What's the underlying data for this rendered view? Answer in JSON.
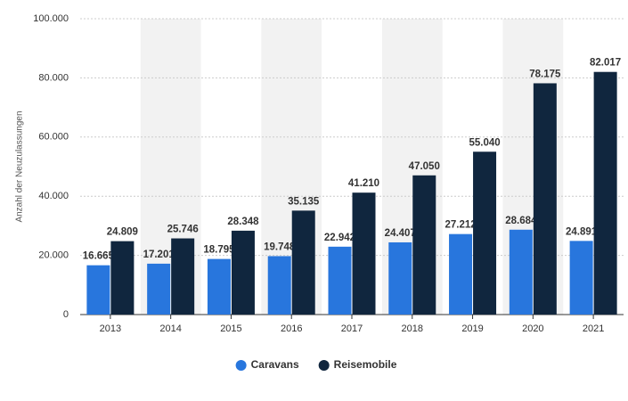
{
  "chart_data": {
    "type": "bar",
    "y_label": "Anzahl der Neuzulassungen",
    "categories": [
      "2013",
      "2014",
      "2015",
      "2016",
      "2017",
      "2018",
      "2019",
      "2020",
      "2021"
    ],
    "series": [
      {
        "name": "Caravans",
        "color": "#2876dd",
        "values": [
          16665,
          17201,
          18795,
          19748,
          22942,
          24407,
          27212,
          28684,
          24891
        ],
        "value_labels": [
          "16.665",
          "17.201",
          "18.795",
          "19.748",
          "22.942",
          "24.407",
          "27.212",
          "28.684",
          "24.891"
        ]
      },
      {
        "name": "Reisemobile",
        "color": "#10263e",
        "values": [
          24809,
          25746,
          28348,
          35135,
          41210,
          47050,
          55040,
          78175,
          82017
        ],
        "value_labels": [
          "24.809",
          "25.746",
          "28.348",
          "35.135",
          "41.210",
          "47.050",
          "55.040",
          "78.175",
          "82.017"
        ]
      }
    ],
    "ylim": [
      0,
      100000
    ],
    "yticks": [
      0,
      {
        "value": 20000,
        "label": "20.000"
      },
      {
        "value": 40000,
        "label": "40.000"
      },
      {
        "value": 60000,
        "label": "60.000"
      },
      {
        "value": 80000,
        "label": "80.000"
      },
      {
        "value": 100000,
        "label": "100.000"
      }
    ],
    "grid": true,
    "legend": "bottom"
  }
}
